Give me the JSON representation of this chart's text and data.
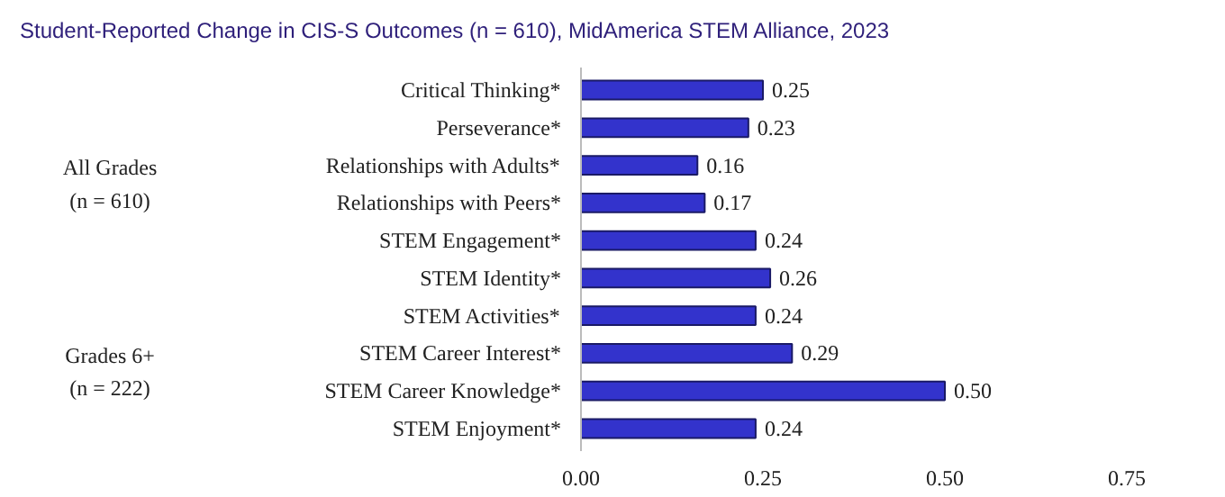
{
  "chart_data": {
    "type": "bar",
    "orientation": "horizontal",
    "title": "Student-Reported Change in CIS-S Outcomes (n = 610), MidAmerica STEM Alliance, 2023",
    "categories": [
      "Critical Thinking*",
      "Perseverance*",
      "Relationships with Adults*",
      "Relationships with Peers*",
      "STEM Engagement*",
      "STEM Identity*",
      "STEM Activities*",
      "STEM Career Interest*",
      "STEM Career Knowledge*",
      "STEM Enjoyment*"
    ],
    "values": [
      0.25,
      0.23,
      0.16,
      0.17,
      0.24,
      0.26,
      0.24,
      0.29,
      0.5,
      0.24
    ],
    "value_labels": [
      "0.25",
      "0.23",
      "0.16",
      "0.17",
      "0.24",
      "0.26",
      "0.24",
      "0.29",
      "0.50",
      "0.24"
    ],
    "color": "#3333cc",
    "xlim": [
      0,
      0.75
    ],
    "xticks": [
      {
        "value": 0,
        "label": "0.00"
      },
      {
        "value": 0.25,
        "label": "0.25"
      },
      {
        "value": 0.5,
        "label": "0.50"
      },
      {
        "value": 0.75,
        "label": "0.75"
      }
    ],
    "annotations": [
      "All Grades\n(n = 610)",
      "Grades 6+\n(n = 222)"
    ],
    "grid": false
  }
}
